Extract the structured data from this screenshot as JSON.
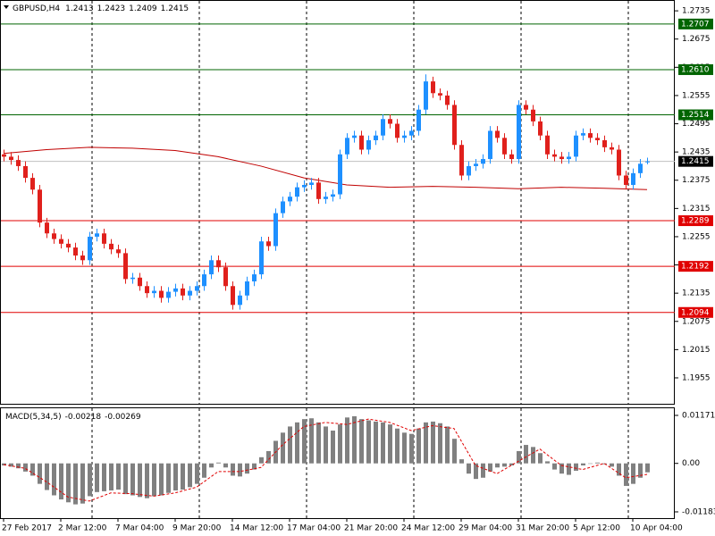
{
  "chart_data": {
    "type": "candlestick",
    "title": "GBPUSD,H4",
    "bull_color": "#1e90ff",
    "bear_color": "#e0201c",
    "ylim": [
      1.1898,
      1.2758
    ],
    "yticks": [
      1.2735,
      1.2675,
      1.2615,
      1.2555,
      1.2495,
      1.2435,
      1.2375,
      1.2315,
      1.2255,
      1.2195,
      1.2135,
      1.2075,
      1.2015,
      1.1955
    ],
    "levels": [
      {
        "value": 1.2707,
        "color": "#006400"
      },
      {
        "value": 1.261,
        "label": "1.2610",
        "color": "#006400"
      },
      {
        "value": 1.2514,
        "color": "#006400"
      },
      {
        "value": 1.2289,
        "color": "#e00000"
      },
      {
        "value": 1.2192,
        "color": "#e00000"
      },
      {
        "value": 1.2094,
        "color": "#e00000"
      }
    ],
    "ohlc": [
      [
        1.243,
        1.244,
        1.2415,
        1.2425
      ],
      [
        1.2425,
        1.2435,
        1.2408,
        1.2418
      ],
      [
        1.2418,
        1.2428,
        1.2395,
        1.2405
      ],
      [
        1.2405,
        1.2415,
        1.237,
        1.238
      ],
      [
        1.238,
        1.239,
        1.2345,
        1.2355
      ],
      [
        1.2355,
        1.2365,
        1.2275,
        1.2285
      ],
      [
        1.2285,
        1.2295,
        1.2252,
        1.2262
      ],
      [
        1.2262,
        1.2272,
        1.224,
        1.225
      ],
      [
        1.225,
        1.226,
        1.223,
        1.224
      ],
      [
        1.224,
        1.225,
        1.2222,
        1.2232
      ],
      [
        1.2232,
        1.2242,
        1.2205,
        1.2215
      ],
      [
        1.2215,
        1.2225,
        1.2195,
        1.2205
      ],
      [
        1.2205,
        1.2265,
        1.2195,
        1.2255
      ],
      [
        1.2255,
        1.2272,
        1.2245,
        1.2262
      ],
      [
        1.2262,
        1.2272,
        1.223,
        1.224
      ],
      [
        1.224,
        1.225,
        1.2218,
        1.2228
      ],
      [
        1.2228,
        1.2238,
        1.221,
        1.222
      ],
      [
        1.222,
        1.223,
        1.2155,
        1.2165
      ],
      [
        1.2165,
        1.2178,
        1.2155,
        1.2168
      ],
      [
        1.2168,
        1.2178,
        1.214,
        1.215
      ],
      [
        1.215,
        1.216,
        1.2125,
        1.2135
      ],
      [
        1.2135,
        1.215,
        1.2125,
        1.214
      ],
      [
        1.214,
        1.215,
        1.2115,
        1.2125
      ],
      [
        1.2125,
        1.2148,
        1.2115,
        1.2138
      ],
      [
        1.2138,
        1.2155,
        1.2128,
        1.2145
      ],
      [
        1.2145,
        1.2155,
        1.212,
        1.213
      ],
      [
        1.213,
        1.215,
        1.212,
        1.214
      ],
      [
        1.214,
        1.216,
        1.213,
        1.215
      ],
      [
        1.215,
        1.2185,
        1.214,
        1.2175
      ],
      [
        1.2175,
        1.2215,
        1.2165,
        1.2205
      ],
      [
        1.2205,
        1.2215,
        1.218,
        1.219
      ],
      [
        1.219,
        1.22,
        1.214,
        1.215
      ],
      [
        1.215,
        1.216,
        1.21,
        1.211
      ],
      [
        1.211,
        1.214,
        1.21,
        1.213
      ],
      [
        1.213,
        1.217,
        1.212,
        1.216
      ],
      [
        1.216,
        1.2185,
        1.215,
        1.2175
      ],
      [
        1.2175,
        1.2255,
        1.2165,
        1.2245
      ],
      [
        1.2245,
        1.2255,
        1.2225,
        1.2235
      ],
      [
        1.2235,
        1.2315,
        1.2225,
        1.2305
      ],
      [
        1.2305,
        1.234,
        1.2295,
        1.233
      ],
      [
        1.233,
        1.235,
        1.232,
        1.234
      ],
      [
        1.234,
        1.237,
        1.233,
        1.236
      ],
      [
        1.236,
        1.2375,
        1.235,
        1.2365
      ],
      [
        1.2365,
        1.238,
        1.2355,
        1.237
      ],
      [
        1.237,
        1.238,
        1.2325,
        1.2335
      ],
      [
        1.2335,
        1.235,
        1.2325,
        1.234
      ],
      [
        1.234,
        1.2355,
        1.233,
        1.2345
      ],
      [
        1.2345,
        1.244,
        1.2335,
        1.243
      ],
      [
        1.243,
        1.2475,
        1.242,
        1.2465
      ],
      [
        1.2465,
        1.248,
        1.2455,
        1.247
      ],
      [
        1.247,
        1.248,
        1.243,
        1.244
      ],
      [
        1.244,
        1.247,
        1.243,
        1.246
      ],
      [
        1.246,
        1.248,
        1.245,
        1.247
      ],
      [
        1.247,
        1.2515,
        1.246,
        1.2505
      ],
      [
        1.2505,
        1.2515,
        1.2485,
        1.2495
      ],
      [
        1.2495,
        1.2505,
        1.2455,
        1.2465
      ],
      [
        1.2465,
        1.248,
        1.2455,
        1.247
      ],
      [
        1.247,
        1.249,
        1.246,
        1.248
      ],
      [
        1.248,
        1.2535,
        1.247,
        1.2525
      ],
      [
        1.2525,
        1.26,
        1.2515,
        1.2585
      ],
      [
        1.2585,
        1.2595,
        1.255,
        1.256
      ],
      [
        1.256,
        1.257,
        1.2545,
        1.2555
      ],
      [
        1.2555,
        1.2565,
        1.2525,
        1.2535
      ],
      [
        1.2535,
        1.2545,
        1.244,
        1.245
      ],
      [
        1.245,
        1.246,
        1.2375,
        1.2385
      ],
      [
        1.2385,
        1.2415,
        1.2375,
        1.2405
      ],
      [
        1.2405,
        1.242,
        1.2395,
        1.241
      ],
      [
        1.241,
        1.243,
        1.24,
        1.242
      ],
      [
        1.242,
        1.249,
        1.241,
        1.248
      ],
      [
        1.248,
        1.249,
        1.2455,
        1.2465
      ],
      [
        1.2465,
        1.2475,
        1.242,
        1.243
      ],
      [
        1.243,
        1.244,
        1.241,
        1.242
      ],
      [
        1.242,
        1.2545,
        1.241,
        1.2535
      ],
      [
        1.2535,
        1.2545,
        1.2515,
        1.2525
      ],
      [
        1.2525,
        1.2535,
        1.249,
        1.25
      ],
      [
        1.25,
        1.251,
        1.246,
        1.247
      ],
      [
        1.247,
        1.248,
        1.242,
        1.243
      ],
      [
        1.243,
        1.244,
        1.2415,
        1.2425
      ],
      [
        1.2425,
        1.2435,
        1.241,
        1.242
      ],
      [
        1.242,
        1.2435,
        1.241,
        1.2425
      ],
      [
        1.2425,
        1.248,
        1.2415,
        1.247
      ],
      [
        1.247,
        1.2485,
        1.246,
        1.2475
      ],
      [
        1.2475,
        1.2485,
        1.2455,
        1.2465
      ],
      [
        1.2465,
        1.2475,
        1.245,
        1.246
      ],
      [
        1.246,
        1.247,
        1.2435,
        1.2445
      ],
      [
        1.2445,
        1.2455,
        1.243,
        1.244
      ],
      [
        1.244,
        1.245,
        1.2375,
        1.2385
      ],
      [
        1.2385,
        1.2395,
        1.2355,
        1.2365
      ],
      [
        1.2365,
        1.24,
        1.2355,
        1.239
      ],
      [
        1.239,
        1.242,
        1.238,
        1.241
      ],
      [
        1.2413,
        1.2423,
        1.2409,
        1.2415
      ]
    ],
    "ma": {
      "color": "#c00000",
      "x": [
        0,
        6,
        12,
        18,
        24,
        30,
        36,
        42,
        48,
        54,
        60,
        66,
        72,
        78,
        84,
        90
      ],
      "values": [
        1.2432,
        1.244,
        1.2445,
        1.2443,
        1.2438,
        1.2425,
        1.2405,
        1.238,
        1.2365,
        1.236,
        1.2362,
        1.236,
        1.2357,
        1.236,
        1.2358,
        1.2355
      ]
    },
    "x_labels": [
      {
        "index": 0,
        "label": "27 Feb 2017"
      },
      {
        "index": 8,
        "label": "2 Mar 12:00"
      },
      {
        "index": 16,
        "label": "7 Mar 04:00"
      },
      {
        "index": 24,
        "label": "9 Mar 20:00"
      },
      {
        "index": 32,
        "label": "14 Mar 12:00"
      },
      {
        "index": 40,
        "label": "17 Mar 04:00"
      },
      {
        "index": 48,
        "label": "21 Mar 20:00"
      },
      {
        "index": 56,
        "label": "24 Mar 12:00"
      },
      {
        "index": 64,
        "label": "29 Mar 04:00"
      },
      {
        "index": 72,
        "label": "31 Mar 20:00"
      },
      {
        "index": 80,
        "label": "5 Apr 12:00"
      },
      {
        "index": 88,
        "label": "10 Apr 04:00"
      }
    ],
    "macd": {
      "title": "MACD(5,34,5)",
      "ylim": [
        -0.01336,
        0.01345
      ],
      "yticks": [
        0.01171,
        {
          "value": 0,
          "label": "0.00"
        },
        -0.01183
      ],
      "histogram": {
        "color": "#808080",
        "values": [
          -0.0005,
          -0.0008,
          -0.0012,
          -0.002,
          -0.003,
          -0.005,
          -0.0065,
          -0.0078,
          -0.0088,
          -0.0095,
          -0.01,
          -0.0098,
          -0.008,
          -0.007,
          -0.0068,
          -0.0066,
          -0.0064,
          -0.0075,
          -0.0078,
          -0.0082,
          -0.0085,
          -0.008,
          -0.0078,
          -0.0072,
          -0.0066,
          -0.0064,
          -0.0058,
          -0.005,
          -0.0035,
          -0.001,
          0.0002,
          -0.001,
          -0.003,
          -0.0032,
          -0.0025,
          -0.0015,
          0.0015,
          0.003,
          0.0055,
          0.0075,
          0.009,
          0.01,
          0.0108,
          0.011,
          0.01,
          0.009,
          0.008,
          0.0095,
          0.0112,
          0.0115,
          0.0108,
          0.0105,
          0.0102,
          0.01,
          0.0095,
          0.0085,
          0.0075,
          0.0072,
          0.0085,
          0.01,
          0.0102,
          0.0098,
          0.009,
          0.006,
          0.001,
          -0.0025,
          -0.0038,
          -0.0035,
          -0.002,
          -0.001,
          -0.0008,
          -0.0005,
          0.003,
          0.0045,
          0.004,
          0.0025,
          0.0005,
          -0.0015,
          -0.0025,
          -0.0028,
          -0.0018,
          -0.0005,
          0.0,
          0.0002,
          -0.0002,
          -0.0008,
          -0.003,
          -0.0055,
          -0.005,
          -0.0035,
          -0.00218
        ]
      },
      "signal": {
        "color": "#e00000",
        "x": [
          0,
          3,
          6,
          9,
          12,
          15,
          18,
          21,
          24,
          27,
          30,
          33,
          36,
          39,
          42,
          45,
          48,
          51,
          54,
          57,
          60,
          63,
          66,
          69,
          72,
          75,
          78,
          81,
          84,
          87,
          90
        ],
        "values": [
          -0.0003,
          -0.0012,
          -0.0045,
          -0.0082,
          -0.0092,
          -0.0072,
          -0.0074,
          -0.008,
          -0.0072,
          -0.0058,
          -0.002,
          -0.002,
          -0.001,
          0.0045,
          0.009,
          0.01,
          0.0095,
          0.0108,
          0.01,
          0.008,
          0.0092,
          0.0085,
          -0.0005,
          -0.0025,
          0.0005,
          0.0035,
          -0.0005,
          -0.0015,
          0.0,
          -0.0035,
          -0.00269
        ]
      }
    }
  }
}
